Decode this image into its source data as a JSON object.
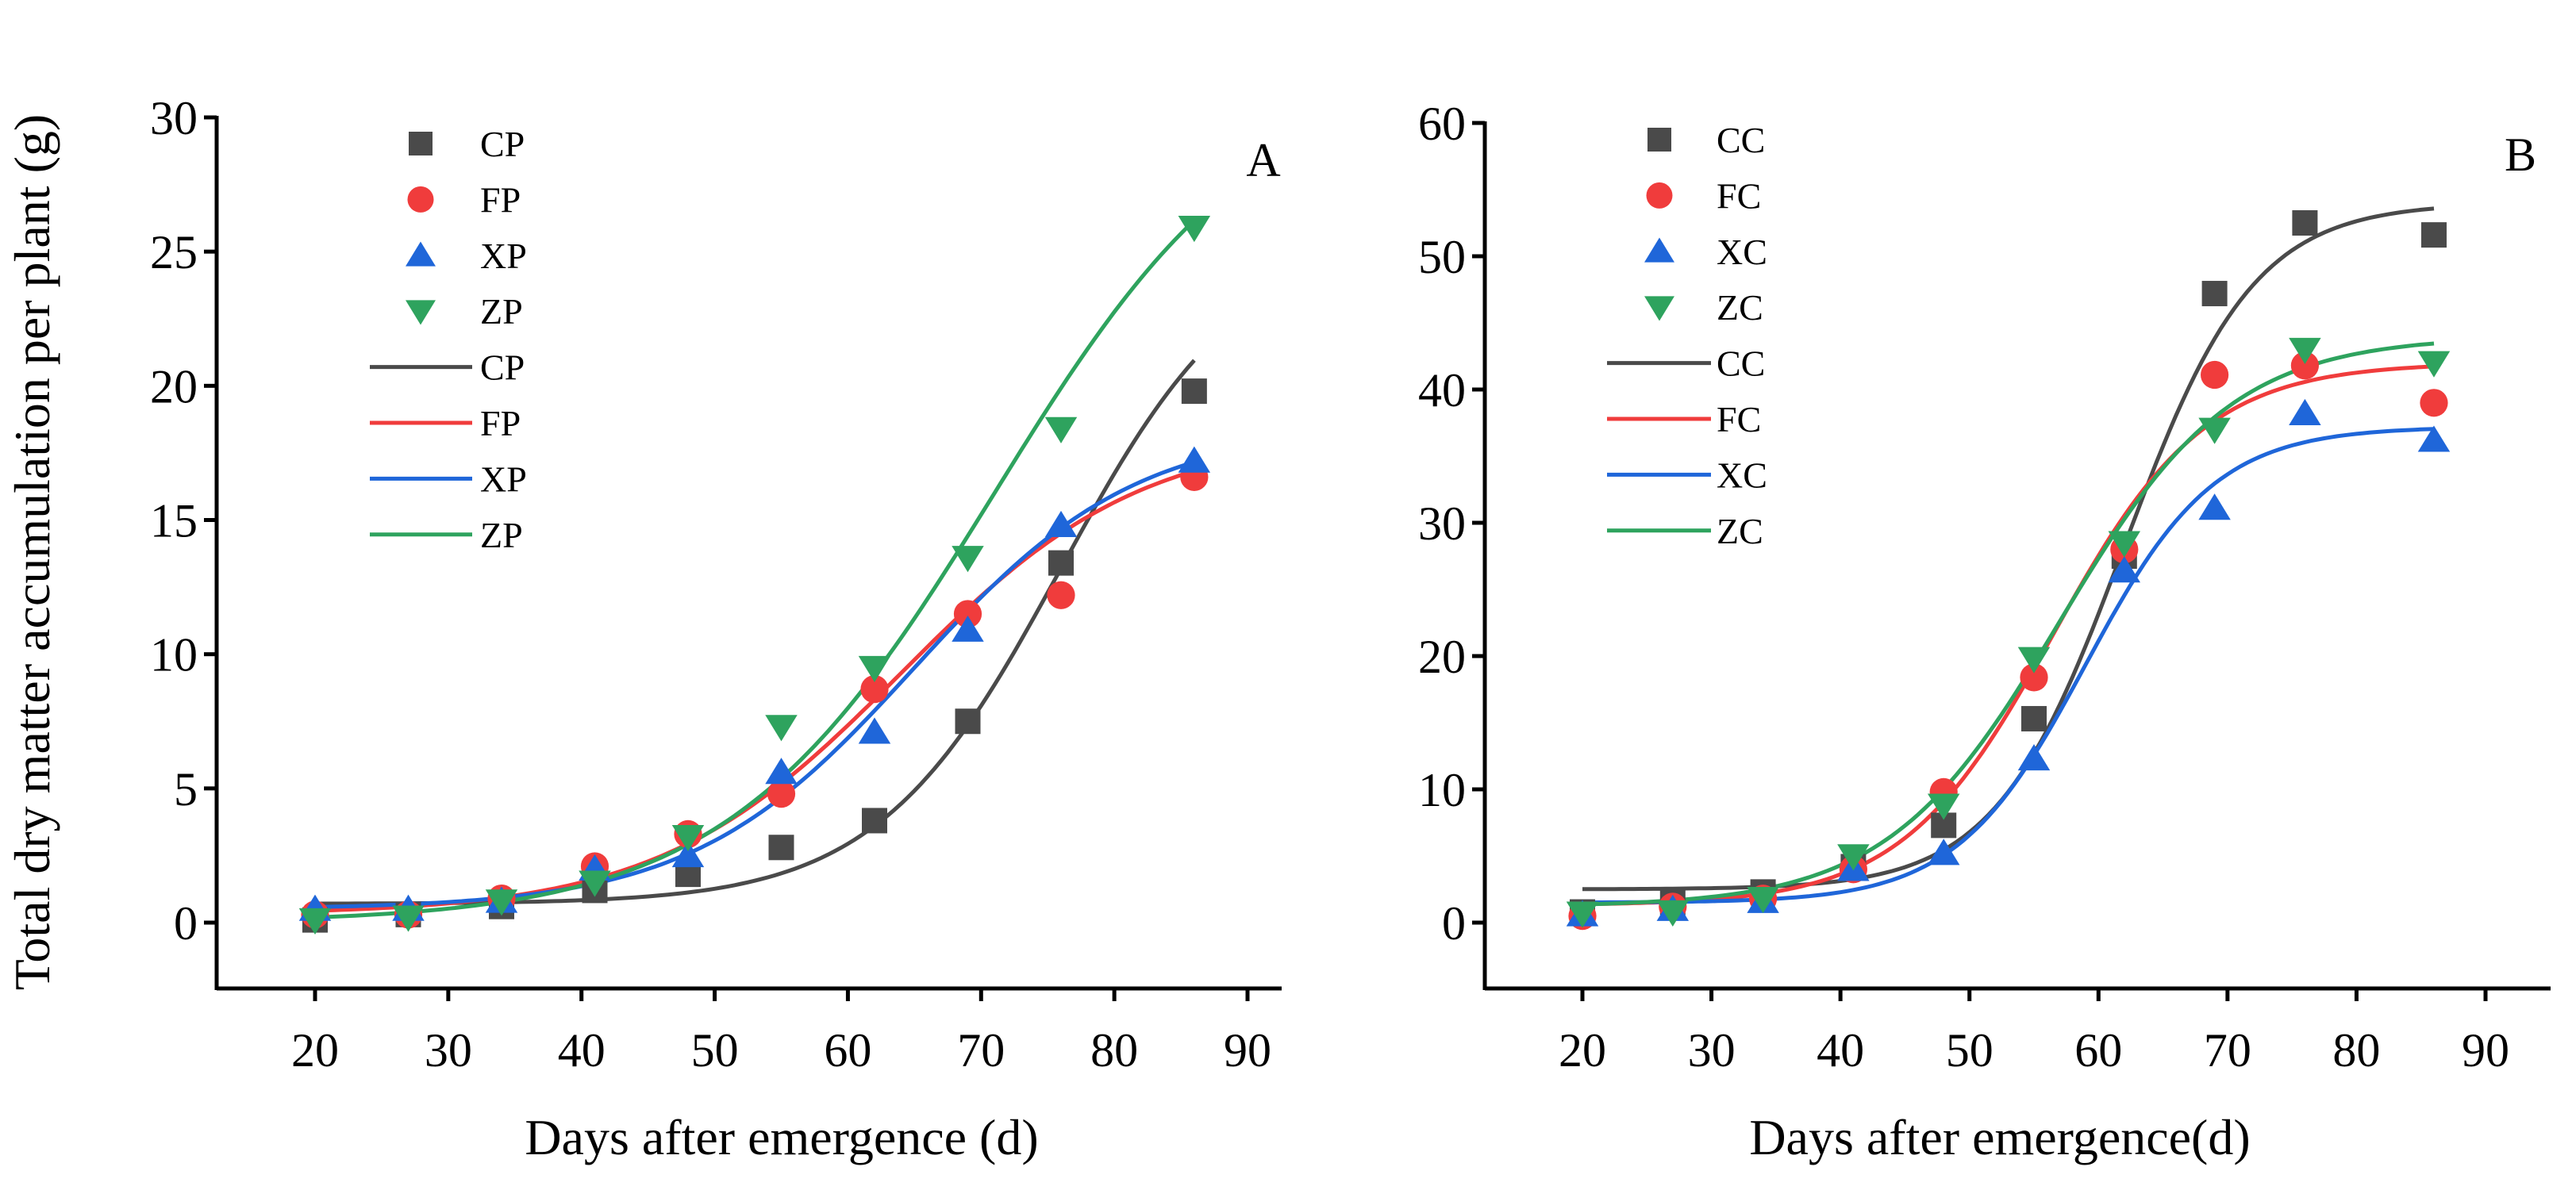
{
  "chart_data": [
    {
      "type": "scatter",
      "panel_label": "A",
      "xlabel": "Days after emergence (d)",
      "ylabel": "Total dry matter accumulation per plant (g)",
      "xlim": [
        13,
        93
      ],
      "ylim": [
        -5,
        30
      ],
      "xticks": [
        20,
        30,
        40,
        50,
        60,
        70,
        80,
        90
      ],
      "yticks": [
        0,
        5,
        10,
        15,
        20,
        25,
        30
      ],
      "grid": false,
      "legend_position": "top-left",
      "x": [
        20,
        27,
        34,
        41,
        48,
        55,
        62,
        69,
        76,
        86
      ],
      "series": [
        {
          "name": "CP",
          "color": "#4a4a4a",
          "marker": "square",
          "values": [
            0.1,
            0.3,
            0.6,
            1.2,
            1.8,
            2.8,
            3.8,
            7.5,
            13.4,
            19.8
          ],
          "fit": {
            "model": "logistic",
            "base": 0.7,
            "amplitude": 25,
            "xc": 76,
            "k": 0.145
          }
        },
        {
          "name": "FP",
          "color": "#f03c3c",
          "marker": "circle",
          "values": [
            0.3,
            0.3,
            0.9,
            2.1,
            3.3,
            4.8,
            8.7,
            11.5,
            12.2,
            16.6
          ],
          "fit": {
            "model": "logistic",
            "base": 0.3,
            "amplitude": 18,
            "xc": 64,
            "k": 0.11
          }
        },
        {
          "name": "XP",
          "color": "#1f66d9",
          "marker": "triangle-up",
          "values": [
            0.5,
            0.5,
            0.8,
            2.0,
            2.5,
            5.6,
            7.1,
            10.9,
            14.8,
            17.2
          ],
          "fit": {
            "model": "logistic",
            "base": 0.5,
            "amplitude": 18,
            "xc": 65,
            "k": 0.12
          }
        },
        {
          "name": "ZP",
          "color": "#2ea35e",
          "marker": "triangle-down",
          "values": [
            0.1,
            0.2,
            0.8,
            1.5,
            3.2,
            7.3,
            9.5,
            13.6,
            18.4,
            25.9
          ],
          "fit": {
            "model": "logistic",
            "base": 0.0,
            "amplitude": 32,
            "xc": 71,
            "k": 0.1
          }
        }
      ]
    },
    {
      "type": "scatter",
      "panel_label": "B",
      "xlabel": "Days after emergence(d)",
      "ylabel": "",
      "xlim": [
        13,
        93
      ],
      "ylim": [
        -10,
        60
      ],
      "xticks": [
        20,
        30,
        40,
        50,
        60,
        70,
        80,
        90
      ],
      "yticks": [
        0,
        10,
        20,
        30,
        40,
        50,
        60
      ],
      "grid": false,
      "legend_position": "top-left",
      "x": [
        20,
        27,
        34,
        41,
        48,
        55,
        62,
        69,
        76,
        86
      ],
      "series": [
        {
          "name": "CC",
          "color": "#4a4a4a",
          "marker": "square",
          "values": [
            0.8,
            1.5,
            2.3,
            4.2,
            7.3,
            15.3,
            27.5,
            47.2,
            52.5,
            51.6
          ],
          "fit": {
            "model": "logistic",
            "base": 2.5,
            "amplitude": 51.5,
            "xc": 62,
            "k": 0.2
          }
        },
        {
          "name": "FC",
          "color": "#f03c3c",
          "marker": "circle",
          "values": [
            0.5,
            1.2,
            1.8,
            4.0,
            9.8,
            18.4,
            28.0,
            41.1,
            41.8,
            39.0
          ],
          "fit": {
            "model": "logistic",
            "base": 1.3,
            "amplitude": 40.7,
            "xc": 56.5,
            "k": 0.17
          }
        },
        {
          "name": "XC",
          "color": "#1f66d9",
          "marker": "triangle-up",
          "values": [
            0.6,
            1.0,
            1.6,
            4.0,
            5.2,
            12.3,
            26.4,
            31.1,
            38.2,
            36.2
          ],
          "fit": {
            "model": "logistic",
            "base": 1.5,
            "amplitude": 35.7,
            "xc": 59,
            "k": 0.2
          }
        },
        {
          "name": "ZC",
          "color": "#2ea35e",
          "marker": "triangle-down",
          "values": [
            0.7,
            0.8,
            1.8,
            5.0,
            8.8,
            19.8,
            28.5,
            37.0,
            43.0,
            42.0
          ],
          "fit": {
            "model": "logistic",
            "base": 1.2,
            "amplitude": 42.8,
            "xc": 57,
            "k": 0.15
          }
        }
      ]
    }
  ]
}
